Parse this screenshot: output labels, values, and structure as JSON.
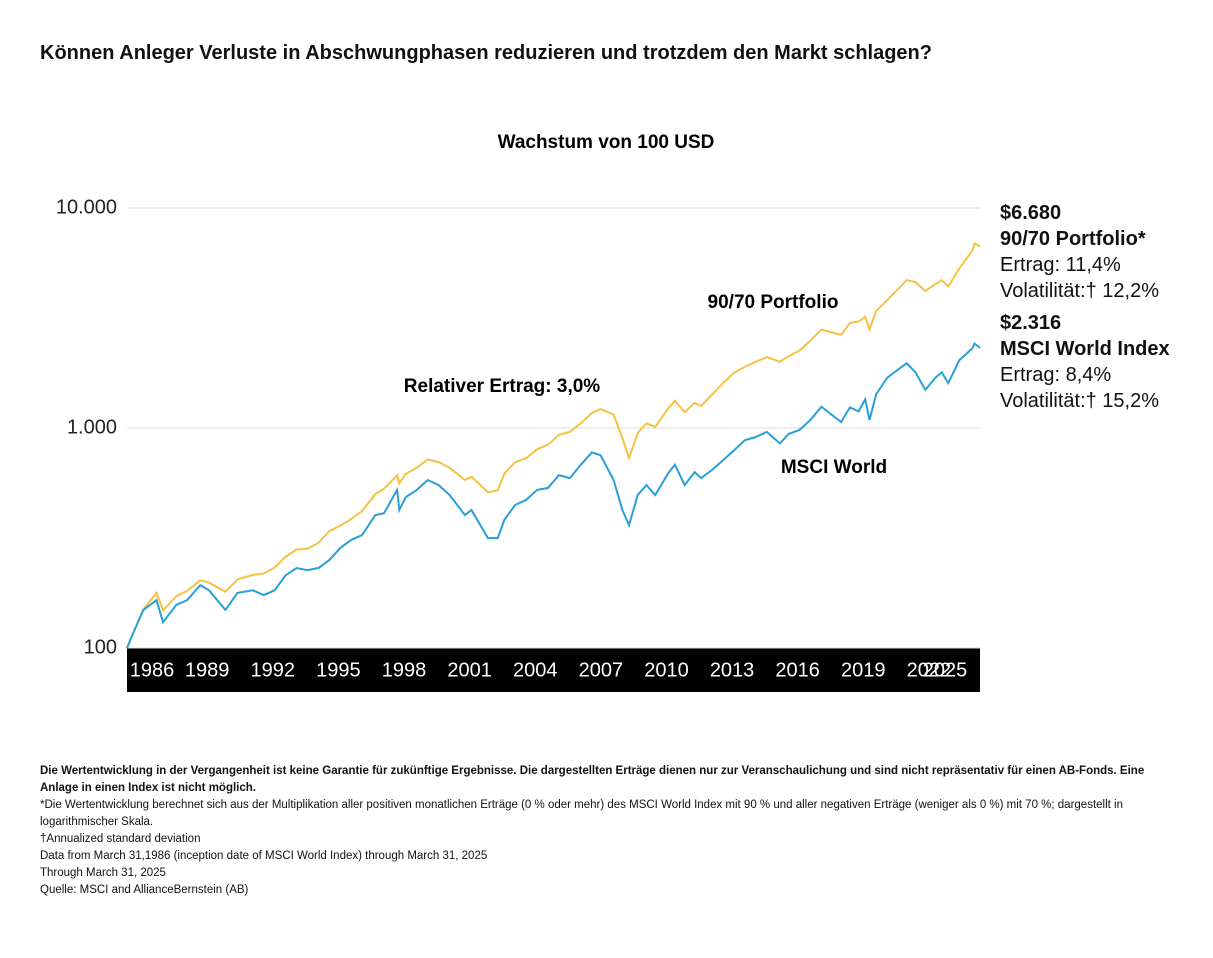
{
  "header": {
    "title": "Können Anleger Verluste in Abschwungphasen reduzieren und trotzdem den Markt schlagen?"
  },
  "chart_data": {
    "type": "line",
    "title": "Wachstum von 100 USD",
    "log_scale": true,
    "grid": true,
    "xlim": [
      1986.25,
      2025.25
    ],
    "xticks": [
      1986,
      1989,
      1992,
      1995,
      1998,
      2001,
      2004,
      2007,
      2010,
      2013,
      2016,
      2019,
      2022,
      2025
    ],
    "ylim": [
      100,
      10000
    ],
    "yticks": [
      {
        "value": 10000,
        "label": "10.000"
      },
      {
        "value": 1000,
        "label": "1.000"
      },
      100
    ],
    "x": [
      1986.25,
      1986.5,
      1987.0,
      1987.6,
      1987.9,
      1988.5,
      1989.0,
      1989.6,
      1990.0,
      1990.75,
      1991.3,
      1992.0,
      1992.5,
      1993.0,
      1993.5,
      1994.0,
      1994.5,
      1995.0,
      1995.5,
      1996.0,
      1996.5,
      1997.0,
      1997.6,
      1998.0,
      1998.6,
      1998.7,
      1999.0,
      1999.5,
      2000.0,
      2000.5,
      2001.0,
      2001.7,
      2002.0,
      2002.75,
      2003.2,
      2003.5,
      2004.0,
      2004.5,
      2005.0,
      2005.5,
      2006.0,
      2006.5,
      2007.0,
      2007.5,
      2007.9,
      2008.5,
      2008.9,
      2009.2,
      2009.6,
      2010.0,
      2010.4,
      2011.0,
      2011.3,
      2011.75,
      2012.2,
      2012.5,
      2013.0,
      2013.5,
      2014.0,
      2014.5,
      2015.0,
      2015.5,
      2016.1,
      2016.5,
      2017.0,
      2017.5,
      2018.0,
      2018.9,
      2019.3,
      2019.7,
      2020.0,
      2020.2,
      2020.5,
      2021.0,
      2021.9,
      2022.3,
      2022.75,
      2023.2,
      2023.5,
      2023.8,
      2024.3,
      2024.9,
      2025.0,
      2025.25
    ],
    "series": [
      {
        "name": "90/70 Portfolio",
        "color": "#f5c242",
        "values": [
          100,
          115,
          150,
          178,
          148,
          172,
          182,
          203,
          198,
          180,
          205,
          215,
          218,
          232,
          260,
          280,
          283,
          300,
          340,
          360,
          385,
          420,
          500,
          530,
          610,
          560,
          620,
          660,
          720,
          700,
          660,
          580,
          600,
          510,
          520,
          620,
          700,
          730,
          800,
          840,
          930,
          960,
          1050,
          1170,
          1220,
          1150,
          900,
          730,
          950,
          1050,
          1010,
          1230,
          1330,
          1180,
          1300,
          1260,
          1420,
          1600,
          1780,
          1900,
          2000,
          2100,
          2000,
          2120,
          2250,
          2500,
          2800,
          2650,
          3000,
          3050,
          3200,
          2800,
          3400,
          3800,
          4700,
          4600,
          4200,
          4500,
          4700,
          4400,
          5300,
          6400,
          6900,
          6680
        ]
      },
      {
        "name": "MSCI World",
        "color": "#2a9fd6",
        "values": [
          100,
          115,
          149,
          165,
          131,
          157,
          165,
          193,
          183,
          149,
          178,
          183,
          174,
          183,
          214,
          231,
          226,
          231,
          251,
          285,
          310,
          326,
          402,
          410,
          523,
          424,
          485,
          523,
          580,
          550,
          496,
          402,
          424,
          316,
          316,
          382,
          447,
          471,
          523,
          534,
          611,
          592,
          680,
          775,
          752,
          580,
          424,
          362,
          496,
          550,
          496,
          624,
          680,
          550,
          630,
          592,
          645,
          713,
          790,
          880,
          910,
          960,
          850,
          940,
          980,
          1090,
          1250,
          1065,
          1240,
          1190,
          1350,
          1087,
          1420,
          1690,
          1970,
          1790,
          1490,
          1690,
          1790,
          1600,
          2030,
          2300,
          2420,
          2316
        ]
      }
    ],
    "annotations": [
      "Relativer Ertrag: 3,0%"
    ],
    "end_labels": [
      {
        "value": "$6.680",
        "name": "90/70 Portfolio*",
        "return": "Ertrag: 11,4%",
        "volatility": "Volatilität:† 12,2%"
      },
      {
        "value": "$2.316",
        "name": "MSCI World Index",
        "return": "Ertrag: 8,4%",
        "volatility": "Volatilität:† 15,2%"
      }
    ]
  },
  "footnotes": [
    "Die Wertentwicklung in der Vergangenheit ist keine Garantie für zukünftige Ergebnisse. Die dargestellten Erträge dienen nur zur Veranschaulichung und sind nicht repräsentativ für einen AB-Fonds. Eine Anlage in einen Index ist nicht möglich.",
    "*Die Wertentwicklung berechnet sich aus der Multiplikation aller positiven monatlichen Erträge (0 % oder mehr) des MSCI World Index mit 90 % und aller negativen Erträge (weniger als 0 %) mit 70 %; dargestellt in logarithmischer Skala.",
    "†Annualized standard deviation",
    "Data from March 31,1986 (inception date of MSCI World Index) through March 31, 2025",
    "Through March 31, 2025",
    "Quelle: MSCI and AllianceBernstein (AB)"
  ]
}
